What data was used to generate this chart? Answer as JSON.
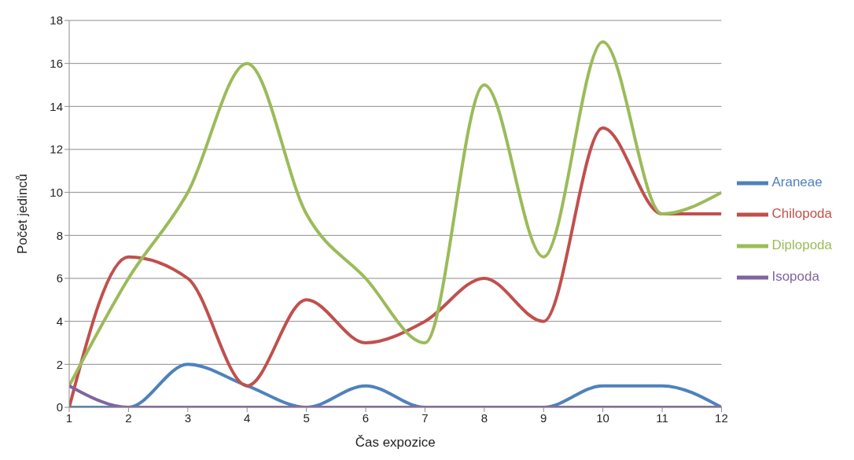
{
  "chart_data": {
    "type": "line",
    "xlabel": "Čas expozice",
    "ylabel": "Počet jedinců",
    "x": [
      1,
      2,
      3,
      4,
      5,
      6,
      7,
      8,
      9,
      10,
      11,
      12
    ],
    "series": [
      {
        "name": "Araneae",
        "color": "#4f81bd",
        "values": [
          0,
          0,
          2,
          1,
          0,
          1,
          0,
          0,
          0,
          1,
          1,
          0
        ]
      },
      {
        "name": "Chilopoda",
        "color": "#c0504d",
        "values": [
          0,
          7,
          6,
          1,
          5,
          3,
          4,
          6,
          4,
          13,
          9,
          9
        ]
      },
      {
        "name": "Diplopoda",
        "color": "#9bbb59",
        "values": [
          1,
          6,
          10,
          16,
          9,
          6,
          3,
          15,
          7,
          17,
          9,
          10
        ]
      },
      {
        "name": "Isopoda",
        "color": "#8064a2",
        "values": [
          1,
          0,
          0,
          0,
          0,
          0,
          0,
          0,
          0,
          0,
          0,
          0
        ]
      }
    ],
    "xlim": [
      1,
      12
    ],
    "xticks": [
      1,
      2,
      3,
      4,
      5,
      6,
      7,
      8,
      9,
      10,
      11,
      12
    ],
    "ylim": [
      0,
      18
    ],
    "yticks": [
      0,
      2,
      4,
      6,
      8,
      10,
      12,
      14,
      16,
      18
    ],
    "grid": "y",
    "legend": "right",
    "marker": "none",
    "line_style": "solid"
  }
}
